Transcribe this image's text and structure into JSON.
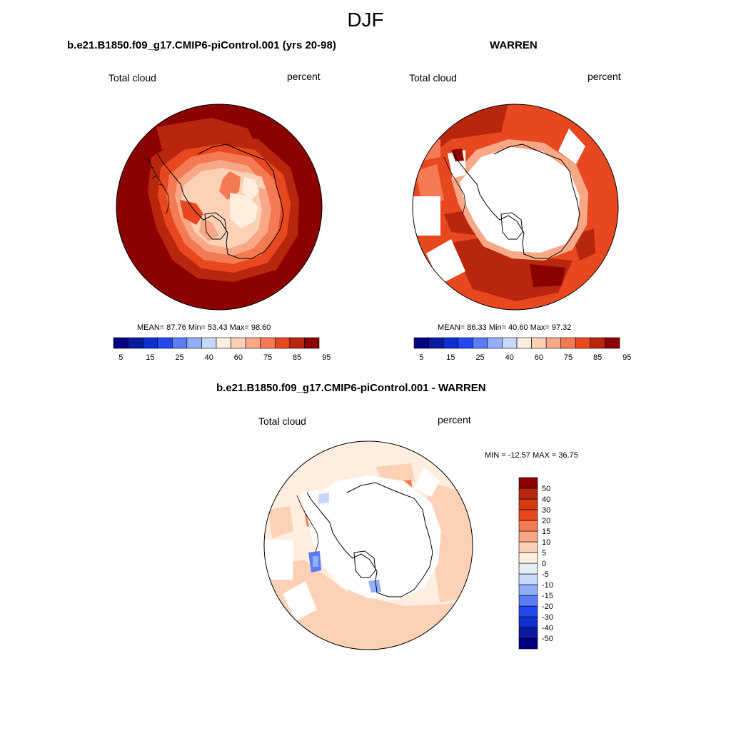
{
  "figure": {
    "title": "DJF"
  },
  "panels": [
    {
      "id": "model",
      "title": "b.e21.B1850.f09_g17.CMIP6-piControl.001 (yrs 20-98)",
      "left_label": "Total cloud",
      "right_label": "percent",
      "stats": "MEAN=  87.76  Min=  53.43  Max=  98.60"
    },
    {
      "id": "obs",
      "title": "WARREN",
      "left_label": "Total cloud",
      "right_label": "percent",
      "stats": "MEAN=  86.33  Min=  40.60  Max=  97.32"
    },
    {
      "id": "diff",
      "title": "b.e21.B1850.f09_g17.CMIP6-piControl.001 - WARREN",
      "left_label": "Total cloud",
      "right_label": "percent",
      "stats": "MIN = -12.57 MAX =  36.75"
    }
  ],
  "colorbars": {
    "abs": {
      "colors": [
        "#000080",
        "#0a1a9f",
        "#0d2fd0",
        "#2448f0",
        "#5a7df5",
        "#93adf7",
        "#c6d8fb",
        "#fdeee0",
        "#fcd1b5",
        "#f8a886",
        "#f37a52",
        "#e8481f",
        "#b8260e",
        "#8b0000"
      ],
      "labels": [
        "5",
        "15",
        "25",
        "40",
        "60",
        "75",
        "85",
        "95"
      ]
    },
    "diff": {
      "colors": [
        "#000080",
        "#0a1a9f",
        "#0d2fd0",
        "#2448f0",
        "#5a7df5",
        "#93adf7",
        "#c6d8fb",
        "#e3ecf7",
        "#fdeee0",
        "#fcd1b5",
        "#f8a886",
        "#f37a52",
        "#e8481f",
        "#d43a10",
        "#b8260e",
        "#8b0000"
      ],
      "labels": [
        "-50",
        "-40",
        "-30",
        "-20",
        "-15",
        "-10",
        "-5",
        "0",
        "5",
        "10",
        "15",
        "20",
        "30",
        "40",
        "50"
      ]
    }
  }
}
